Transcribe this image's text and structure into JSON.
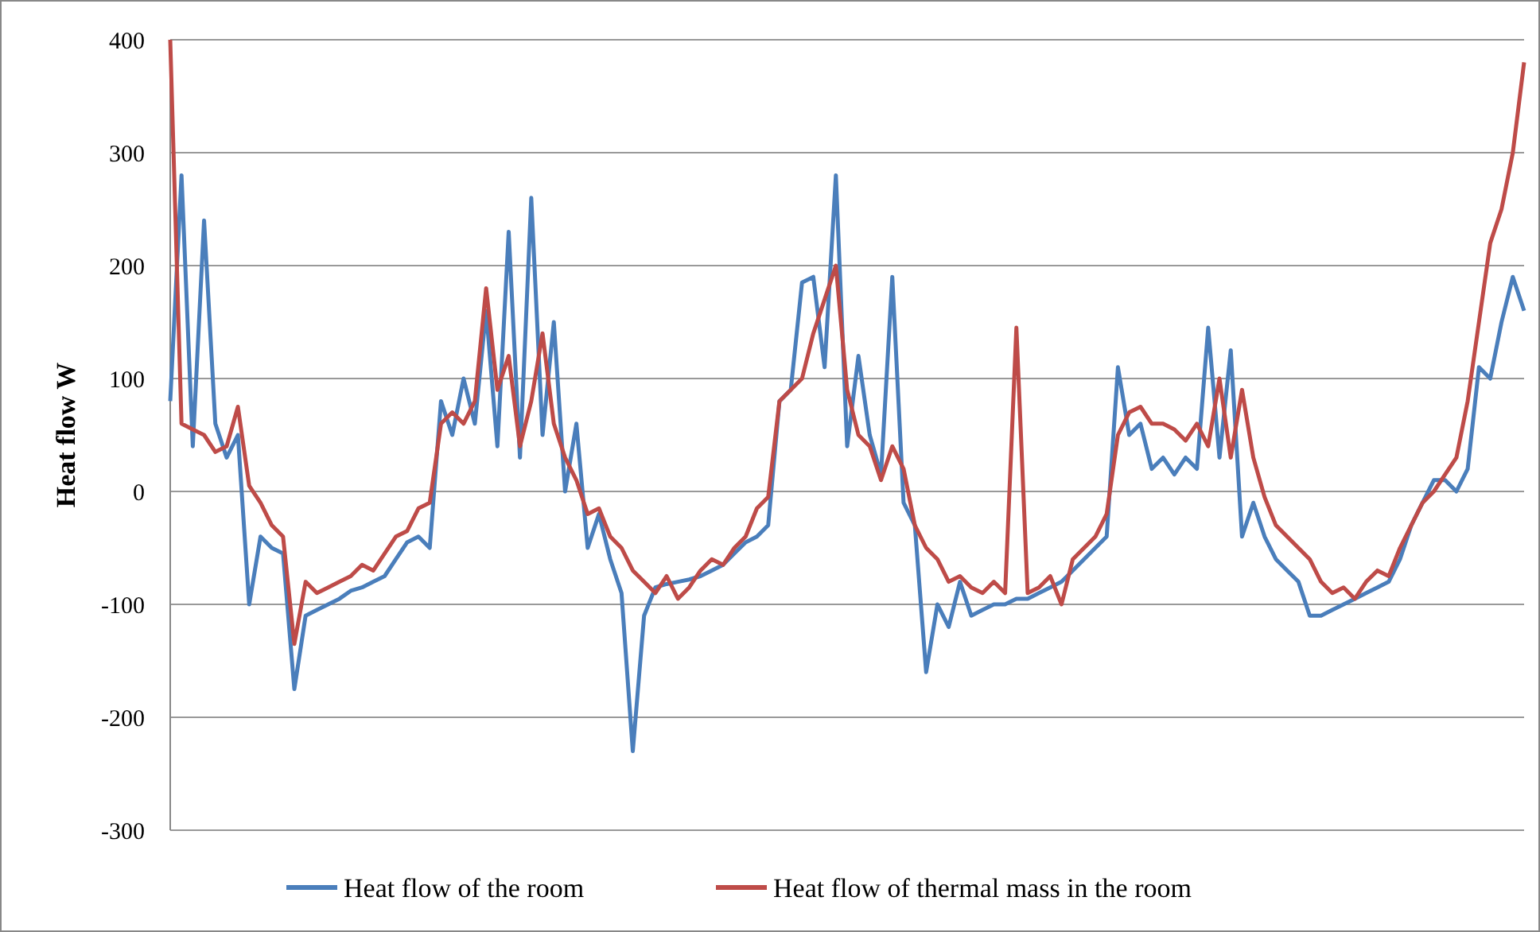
{
  "chart_data": {
    "type": "line",
    "ylabel": "Heat flow W",
    "categories": [
      null,
      null,
      null,
      null,
      null,
      null,
      null,
      null,
      null,
      null,
      null,
      null,
      null,
      null,
      null,
      null,
      null,
      null,
      null,
      null,
      null,
      null,
      null,
      null,
      null,
      null,
      null,
      null,
      null,
      null,
      null,
      null,
      null,
      null,
      null,
      null,
      null,
      null,
      null,
      null,
      null,
      null,
      null,
      null,
      null,
      null,
      null,
      null,
      null,
      null,
      null,
      null,
      null,
      null,
      null,
      null,
      null,
      null,
      null,
      null,
      null,
      null,
      null,
      null,
      null,
      null,
      null,
      null,
      null,
      null,
      null,
      null,
      null,
      null,
      null,
      null,
      null,
      null,
      null,
      null,
      null,
      null,
      null,
      null,
      null,
      null,
      null,
      null,
      null,
      null,
      null,
      null,
      null,
      null,
      null,
      null,
      null,
      null,
      null,
      null,
      null,
      null,
      null,
      null,
      null,
      null,
      null,
      null,
      null,
      null,
      null,
      null,
      null,
      null,
      null,
      null,
      null,
      null,
      null,
      null,
      null
    ],
    "series": [
      {
        "name": "Heat flow of the room",
        "color": "#4a7ebb",
        "values": [
          80,
          280,
          40,
          240,
          60,
          30,
          50,
          -100,
          -40,
          -50,
          -55,
          -175,
          -110,
          -105,
          -100,
          -95,
          -88,
          -85,
          -80,
          -75,
          -60,
          -45,
          -40,
          -50,
          80,
          50,
          100,
          60,
          160,
          40,
          230,
          30,
          260,
          50,
          150,
          0,
          60,
          -50,
          -20,
          -60,
          -90,
          -230,
          -110,
          -85,
          -82,
          -80,
          -78,
          -75,
          -70,
          -65,
          -55,
          -45,
          -40,
          -30,
          80,
          90,
          185,
          190,
          110,
          280,
          40,
          120,
          50,
          15,
          190,
          -10,
          -30,
          -160,
          -100,
          -120,
          -80,
          -110,
          -105,
          -100,
          -100,
          -95,
          -95,
          -90,
          -85,
          -80,
          -70,
          -60,
          -50,
          -40,
          110,
          50,
          60,
          20,
          30,
          15,
          30,
          20,
          145,
          30,
          125,
          -40,
          -10,
          -40,
          -60,
          -70,
          -80,
          -110,
          -110,
          -105,
          -100,
          -95,
          -90,
          -85,
          -80,
          -60,
          -30,
          -10,
          10,
          10,
          0,
          20,
          110,
          100,
          150,
          190,
          160
        ]
      },
      {
        "name": "Heat flow of thermal mass in the room",
        "color": "#be4b48",
        "values": [
          400,
          60,
          55,
          50,
          35,
          40,
          75,
          5,
          -10,
          -30,
          -40,
          -135,
          -80,
          -90,
          -85,
          -80,
          -75,
          -65,
          -70,
          -55,
          -40,
          -35,
          -15,
          -10,
          60,
          70,
          60,
          80,
          180,
          90,
          120,
          40,
          80,
          140,
          60,
          30,
          10,
          -20,
          -15,
          -40,
          -50,
          -70,
          -80,
          -90,
          -75,
          -95,
          -85,
          -70,
          -60,
          -65,
          -50,
          -40,
          -15,
          -5,
          80,
          90,
          100,
          140,
          170,
          200,
          90,
          50,
          40,
          10,
          40,
          20,
          -30,
          -50,
          -60,
          -80,
          -75,
          -85,
          -90,
          -80,
          -90,
          145,
          -90,
          -85,
          -75,
          -100,
          -60,
          -50,
          -40,
          -20,
          50,
          70,
          75,
          60,
          60,
          55,
          45,
          60,
          40,
          100,
          30,
          90,
          30,
          -5,
          -30,
          -40,
          -50,
          -60,
          -80,
          -90,
          -85,
          -95,
          -80,
          -70,
          -75,
          -50,
          -30,
          -10,
          0,
          15,
          30,
          80,
          150,
          220,
          250,
          300,
          380
        ]
      }
    ],
    "ylim": [
      -300,
      400
    ],
    "yticks": [
      -300,
      -200,
      -100,
      0,
      100,
      200,
      300,
      400
    ],
    "grid": "y",
    "legend": "bottom",
    "line_style": "solid",
    "marker": "none"
  }
}
